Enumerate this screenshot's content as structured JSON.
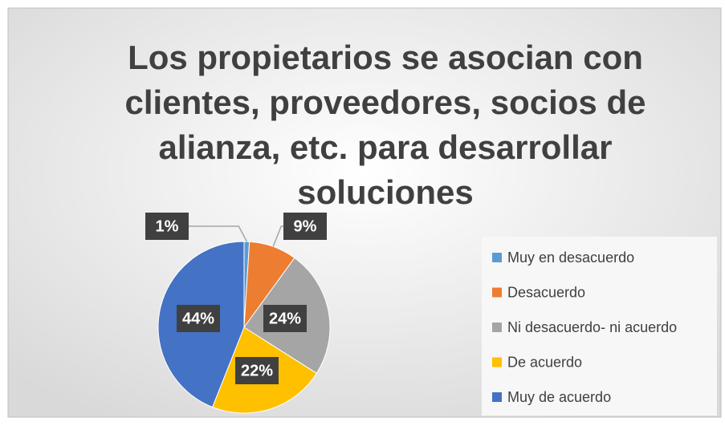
{
  "chart_data": {
    "type": "pie",
    "title": "Los propietarios se asocian con clientes, proveedores, socios de alianza, etc. para desarrollar soluciones",
    "categories": [
      "Muy en desacuerdo",
      "Desacuerdo",
      "Ni desacuerdo- ni acuerdo",
      "De acuerdo",
      "Muy de acuerdo"
    ],
    "values": [
      1,
      9,
      24,
      22,
      44
    ],
    "value_labels": [
      "1%",
      "9%",
      "24%",
      "22%",
      "44%"
    ],
    "colors": [
      "#5b9bd5",
      "#ed7d31",
      "#a5a5a5",
      "#ffc000",
      "#4472c4"
    ],
    "legend": "right"
  }
}
